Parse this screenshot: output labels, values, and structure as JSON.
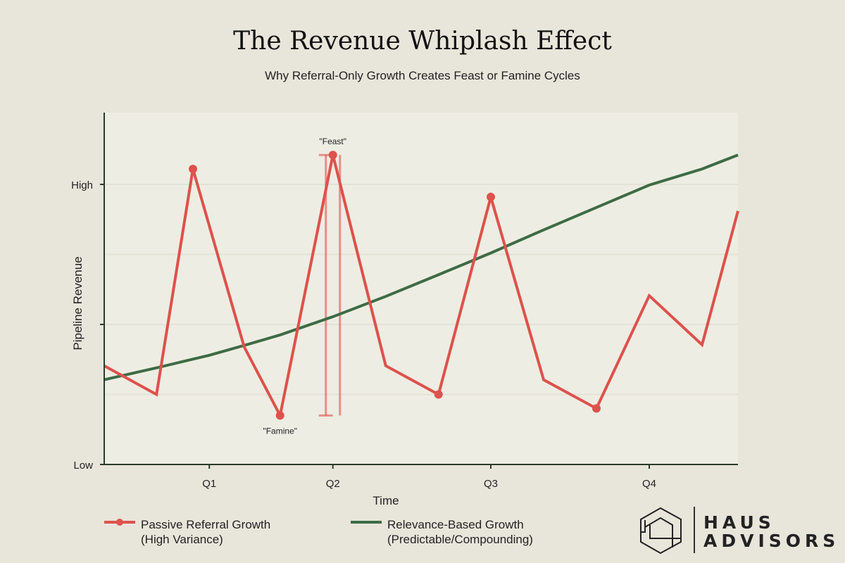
{
  "header": {
    "title": "The Revenue Whiplash Effect",
    "subtitle": "Why Referral-Only Growth Creates Feast or Famine Cycles"
  },
  "colors": {
    "background": "#e8e5da",
    "plot_background": "#eeede3",
    "referral": "#dd524c",
    "relevance": "#3d6b45",
    "axis": "#2b3a2b"
  },
  "chart_data": {
    "type": "line",
    "xlabel": "Time",
    "ylabel": "Pipeline Revenue",
    "xlim": [
      0,
      12
    ],
    "ylim": [
      0,
      5
    ],
    "grid": "horizontal",
    "legend_placement": "bottom",
    "x_ticks": [
      {
        "value": 1.99,
        "label": "Q1"
      },
      {
        "value": 4.33,
        "label": "Q2"
      },
      {
        "value": 7.32,
        "label": "Q3"
      },
      {
        "value": 10.32,
        "label": "Q4"
      }
    ],
    "y_ticks": [
      {
        "value": 0,
        "label": "Low"
      },
      {
        "value": 2,
        "label": ""
      },
      {
        "value": 4,
        "label": "High"
      }
    ],
    "y_gridlines": [
      1,
      2,
      3,
      4
    ],
    "series": [
      {
        "name": "Passive Referral Growth",
        "name_line2": "(High Variance)",
        "color": "#dd524c",
        "marker": "circle",
        "x": [
          0,
          0.99,
          1.68,
          2.65,
          3.33,
          4.33,
          5.33,
          6.33,
          7.32,
          8.32,
          9.32,
          10.32,
          11.32,
          12
        ],
        "y": [
          1.41,
          1.0,
          4.22,
          1.68,
          0.7,
          4.42,
          1.41,
          1.0,
          3.82,
          1.21,
          0.8,
          2.41,
          1.71,
          3.62
        ],
        "marked_indices": [
          2,
          4,
          5,
          7,
          8,
          10
        ]
      },
      {
        "name": "Relevance-Based Growth",
        "name_line2": "(Predictable/Compounding)",
        "color": "#3d6b45",
        "marker": "none",
        "x": [
          0,
          0.99,
          1.99,
          2.65,
          3.33,
          4.33,
          5.33,
          6.33,
          7.32,
          8.32,
          9.32,
          10.32,
          11.32,
          12
        ],
        "y": [
          1.21,
          1.38,
          1.56,
          1.7,
          1.85,
          2.11,
          2.4,
          2.71,
          3.02,
          3.35,
          3.67,
          3.99,
          4.22,
          4.42
        ]
      }
    ],
    "annotations": [
      {
        "text": "\"Feast\"",
        "x": 4.33,
        "y": 4.42,
        "position": "above"
      },
      {
        "text": "\"Famine\"",
        "x": 3.33,
        "y": 0.7,
        "position": "below"
      }
    ],
    "range_bar": {
      "x": 4.33,
      "y_low": 0.7,
      "y_high": 4.42
    }
  },
  "logo": {
    "line1": "HAUS",
    "line2": "ADVISORS"
  }
}
